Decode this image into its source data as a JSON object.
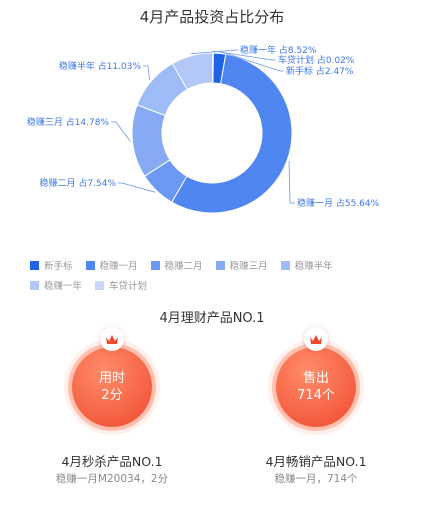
{
  "chart_data": {
    "type": "pie",
    "title": "4月产品投资占比分布",
    "categories": [
      "新手标",
      "稳赚一月",
      "稳赚二月",
      "稳赚三月",
      "稳赚半年",
      "稳赚一年",
      "车贷计划"
    ],
    "values": [
      2.47,
      55.64,
      7.54,
      14.78,
      11.03,
      8.52,
      0.02
    ],
    "slice_labels": [
      "新手标  占2.47%",
      "稳赚一月  占55.64%",
      "稳赚二月  占7.54%",
      "稳赚三月  占14.78%",
      "稳赚半年  占11.03%",
      "稳赚一年  占8.52%",
      "车贷计划  占0.02%"
    ],
    "colors": [
      "#1f63e6",
      "#4f86f0",
      "#6a98f2",
      "#86abf4",
      "#9dbbf6",
      "#b4c8f7",
      "#c9d6f8"
    ],
    "legend_placement": "bottom"
  },
  "section": {
    "title": "4月理财产品NO.1"
  },
  "cards": [
    {
      "badge_line1": "用时",
      "badge_line2": "2分",
      "name": "4月秒杀产品NO.1",
      "sub": "稳赚一月M20034，2分"
    },
    {
      "badge_line1": "售出",
      "badge_line2": "714个",
      "name": "4月畅销产品NO.1",
      "sub": "稳赚一月，714个"
    }
  ]
}
